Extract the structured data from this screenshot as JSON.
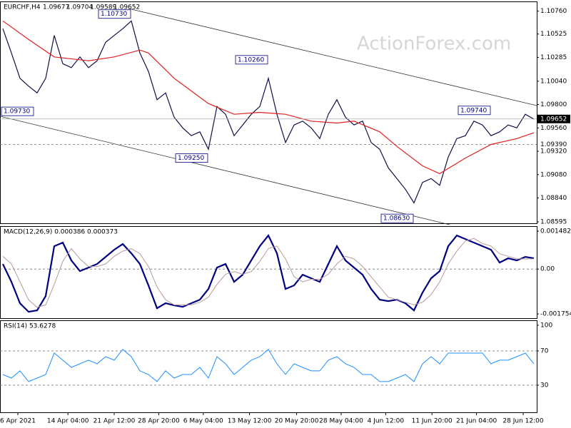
{
  "watermark": "ActionForex.com",
  "chart_data": [
    {
      "type": "line",
      "title": "EURCHF,H4",
      "quote": [
        "1.09677",
        "1.09704",
        "1.09589",
        "1.09652"
      ],
      "xlim": [
        -0.3333,
        62.3333
      ],
      "ylim": [
        1.0858,
        1.1086
      ],
      "yticks": [
        {
          "value": 1.1076,
          "label": "1.10760"
        },
        1.10525,
        1.10285,
        {
          "value": 1.1004,
          "label": "1.10040"
        },
        {
          "value": 1.098,
          "label": "1.09800"
        },
        {
          "value": 1.0956,
          "label": "1.09560"
        },
        {
          "value": 1.0932,
          "label": "1.09320"
        },
        {
          "value": 1.0908,
          "label": "1.09080"
        },
        {
          "value": 1.0884,
          "label": "1.08840"
        },
        1.08595
      ],
      "last_price": {
        "value": 1.09652,
        "label": "1.09652"
      },
      "levels": [
        {
          "value": 1.0939,
          "label": "1.09390"
        }
      ],
      "annotations": [
        {
          "x": 0,
          "value": 1.0973,
          "label": "1.09730"
        },
        {
          "x": 15,
          "value": 1.1073,
          "label": "1.10730"
        },
        {
          "x": 24,
          "value": 1.0925,
          "label": "1.09250"
        },
        {
          "x": 31,
          "value": 1.1026,
          "label": "1.10260"
        },
        {
          "x": 48,
          "value": 1.0863,
          "label": "1.08630"
        },
        {
          "x": 57,
          "value": 1.0974,
          "label": "1.09740"
        }
      ],
      "series": [
        {
          "color": "#10104a",
          "values": [
            1.1058,
            1.1033,
            1.1007,
            1.0999,
            1.0992,
            1.1007,
            1.1051,
            1.1022,
            1.1018,
            1.1029,
            1.1018,
            1.1025,
            1.1044,
            1.1051,
            1.1058,
            1.1066,
            1.1033,
            1.1014,
            1.0985,
            1.0992,
            1.0967,
            1.0956,
            1.0948,
            1.0952,
            1.0934,
            1.0978,
            1.097,
            1.0948,
            1.0959,
            1.097,
            1.0978,
            1.1007,
            1.097,
            1.0941,
            1.0959,
            1.0963,
            1.0956,
            1.0945,
            1.097,
            1.0985,
            1.0967,
            1.0959,
            1.0963,
            1.0941,
            1.0934,
            1.0915,
            1.0904,
            1.0893,
            1.0879,
            1.09,
            1.0904,
            1.0897,
            1.0926,
            1.0945,
            1.0948,
            1.0963,
            1.0959,
            1.0948,
            1.0952,
            1.0959,
            1.0956,
            1.097,
            1.0965
          ]
        },
        {
          "color": "#e02020",
          "x": [
            0,
            3,
            6,
            10,
            13,
            16,
            17,
            20,
            24,
            27,
            30,
            33,
            36,
            39,
            41,
            44,
            46,
            49,
            51,
            54,
            57,
            60,
            62
          ],
          "values": [
            1.1066,
            1.1047,
            1.1029,
            1.1025,
            1.1029,
            1.1036,
            1.1033,
            1.1007,
            1.0981,
            1.097,
            1.0972,
            1.097,
            1.0963,
            1.0961,
            1.0963,
            1.0952,
            1.0937,
            1.0917,
            1.0909,
            1.0925,
            1.0939,
            1.0945,
            1.0951
          ]
        }
      ]
    },
    {
      "type": "line",
      "title": "MACD(12,26,9) 0.000386 0.000373",
      "xlim": [
        -0.3333,
        62.3333
      ],
      "ylim": [
        -0.00192,
        0.00168
      ],
      "yticks": [
        0.001482,
        {
          "value": 0,
          "label": "0.00"
        },
        -0.001754
      ],
      "levels": [
        0
      ],
      "series": [
        {
          "color": "#000080",
          "width": 2.2,
          "values": [
            0.000199,
            -0.000499,
            -0.001336,
            -0.001671,
            -0.001615,
            -0.001057,
            0.000896,
            0.001036,
            0.000338,
            -8e-05,
            5.9e-05,
            0.000199,
            0.000478,
            0.000757,
            0.00098,
            0.000617,
            0.000199,
            -0.000638,
            -0.001531,
            -0.001336,
            -0.00142,
            -0.001475,
            -0.001336,
            -0.001196,
            -0.000778,
            5.9e-05,
            0.000199,
            -0.000499,
            -0.00022,
            0.000338,
            0.000896,
            0.001315,
            0.000617,
            -0.000778,
            -0.000638,
            -0.00022,
            -0.000359,
            -0.000499,
            0.000199,
            0.000896,
            0.000338,
            5.9e-05,
            -0.00022,
            -0.000778,
            -0.001196,
            -0.001252,
            -0.001196,
            -0.001336,
            -0.001615,
            -0.000917,
            -0.000359,
            -8e-05,
            0.000896,
            0.001315,
            0.001175,
            0.001036,
            0.000896,
            0.000757,
            0.000254,
            0.000422,
            0.000338,
            0.000478,
            0.000422
          ]
        },
        {
          "color": "#b89a9a",
          "width": 1,
          "values": [
            0.0005,
            0.0002,
            -0.0005,
            -0.0012,
            -0.0015,
            -0.0014,
            -0.0006,
            0.0003,
            0.0008,
            0.0004,
            0.0001,
            0.0001,
            0.0002,
            0.0005,
            0.0007,
            0.0008,
            0.0006,
            0.0001,
            -0.0007,
            -0.0012,
            -0.0014,
            -0.0014,
            -0.0014,
            -0.0013,
            -0.0011,
            -0.0006,
            -0.0002,
            -0.0001,
            -0.0002,
            -0.0001,
            0.0003,
            0.0008,
            0.0009,
            0.0004,
            -0.0003,
            -0.0005,
            -0.0004,
            -0.0004,
            -0.0002,
            0.0002,
            0.0005,
            0.0004,
            0.0001,
            -0.0003,
            -0.0007,
            -0.0011,
            -0.0012,
            -0.0013,
            -0.0014,
            -0.0013,
            -0.001,
            -0.0005,
            0.0002,
            0.0007,
            0.0011,
            0.0012,
            0.001,
            0.0009,
            0.0006,
            0.0005,
            0.0004,
            0.0004,
            0.0004
          ]
        }
      ]
    },
    {
      "type": "line",
      "title": "RSI(14) 53.6278",
      "xlim": [
        -0.3333,
        62.3333
      ],
      "ylim": [
        -1.7,
        105.8
      ],
      "yticks": [
        100,
        70,
        30
      ],
      "levels": [
        70,
        30
      ],
      "xticks": [
        {
          "value": 1.75,
          "label": "6 Apr 2021"
        },
        {
          "value": 7.6,
          "label": "14 Apr 04:00"
        },
        {
          "value": 13,
          "label": "21 Apr 12:00"
        },
        {
          "value": 18.2,
          "label": "28 Apr 20:00"
        },
        {
          "value": 23.4,
          "label": "6 May 04:00"
        },
        {
          "value": 28.8,
          "label": "13 May 12:00"
        },
        {
          "value": 34.3,
          "label": "20 May 20:00"
        },
        {
          "value": 39.5,
          "label": "28 May 04:00"
        },
        {
          "value": 44.7,
          "label": "4 Jun 12:00"
        },
        {
          "value": 50.1,
          "label": "11 Jun 20:00"
        },
        {
          "value": 55.3,
          "label": "21 Jun 04:00"
        },
        {
          "value": 60.75,
          "label": "28 Jun 12:00"
        }
      ],
      "series": [
        {
          "color": "#1e90ff",
          "width": 1,
          "values": [
            42.5,
            38.3,
            46.7,
            34.2,
            38.3,
            42.5,
            67.5,
            59.2,
            50.8,
            55,
            59.2,
            55,
            63.3,
            59.2,
            71.7,
            63.3,
            46.7,
            42.5,
            34.2,
            46.7,
            38.3,
            42.5,
            42.5,
            50.8,
            38.3,
            63.3,
            55,
            42.5,
            50.8,
            59.2,
            63.3,
            71.7,
            55,
            42.5,
            55,
            50.8,
            46.7,
            46.7,
            59.2,
            63.3,
            55,
            50.8,
            42.5,
            42.5,
            34.2,
            34.2,
            38.3,
            42.5,
            34.2,
            55,
            63.3,
            55,
            67.5,
            67.5,
            67.5,
            67.5,
            67.5,
            55,
            59.2,
            59.2,
            63.3,
            67.5,
            55
          ]
        }
      ]
    }
  ]
}
